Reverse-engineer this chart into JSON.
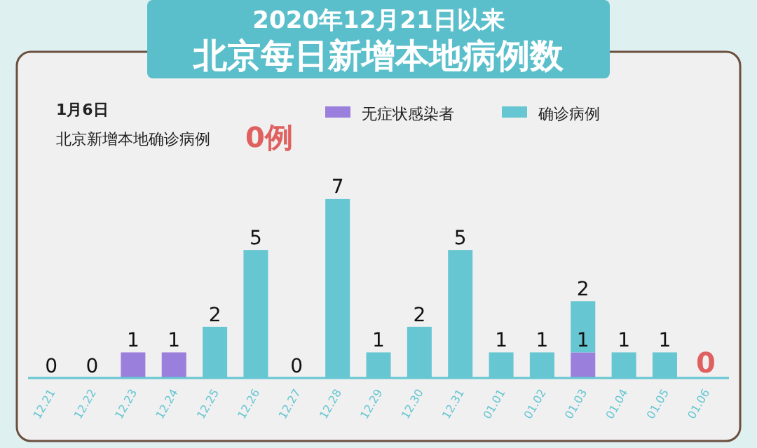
{
  "chart_data": {
    "type": "bar",
    "subtitle": "2020年12月21日以来",
    "title": "北京每日新增本地病例数",
    "categories": [
      "12.21",
      "12.22",
      "12.23",
      "12.24",
      "12.25",
      "12.26",
      "12.27",
      "12.28",
      "12.29",
      "12.30",
      "12.31",
      "01.01",
      "01.02",
      "01.03",
      "01.04",
      "01.05",
      "01.06"
    ],
    "stacked": true,
    "legend": "top",
    "series": [
      {
        "name": "无症状感染者",
        "color": "#9b7fdc",
        "values": [
          0,
          0,
          1,
          1,
          0,
          0,
          0,
          0,
          0,
          0,
          0,
          0,
          0,
          1,
          0,
          0,
          0
        ],
        "value_labels": [
          null,
          null,
          "1",
          "1",
          null,
          null,
          null,
          null,
          null,
          null,
          null,
          null,
          null,
          "1",
          null,
          null,
          null
        ]
      },
      {
        "name": "确诊病例",
        "color": "#66c6d2",
        "values": [
          0,
          0,
          0,
          0,
          2,
          5,
          0,
          7,
          1,
          2,
          5,
          1,
          1,
          2,
          1,
          1,
          0
        ],
        "value_labels": [
          "0",
          "0",
          null,
          null,
          "2",
          "5",
          "0",
          "7",
          "1",
          "2",
          "5",
          "1",
          "1",
          "2",
          "1",
          "1",
          "0"
        ]
      }
    ],
    "annotations": [
      "1月6日",
      "北京新增本地确诊病例",
      "0例"
    ]
  }
}
